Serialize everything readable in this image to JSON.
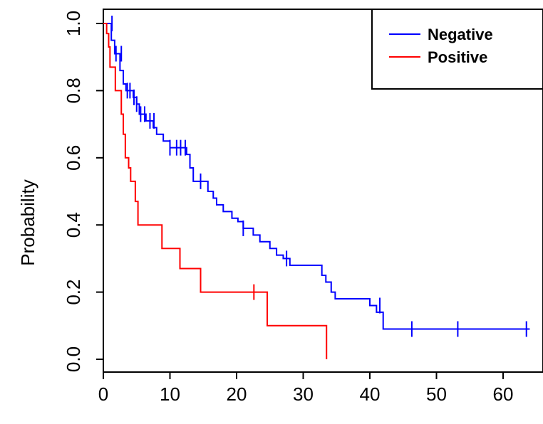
{
  "chart_data": {
    "type": "line",
    "chart_subtype": "kaplan-meier step",
    "title": "",
    "xlabel": "",
    "ylabel": "Probability",
    "xlim": [
      0,
      65
    ],
    "ylim": [
      -0.04,
      1.04
    ],
    "x_ticks": [
      0,
      10,
      20,
      30,
      40,
      50,
      60
    ],
    "x_tick_labels": [
      "0",
      "10",
      "20",
      "30",
      "40",
      "50",
      "60"
    ],
    "y_ticks": [
      0.0,
      0.2,
      0.4,
      0.6,
      0.8,
      1.0
    ],
    "y_tick_labels": [
      "0.0",
      "0.2",
      "0.4",
      "0.6",
      "0.8",
      "1.0"
    ],
    "grid": false,
    "legend": {
      "position": "top-right",
      "entries": [
        "Negative",
        "Positive"
      ]
    },
    "colors": {
      "Negative": "#0000ff",
      "Positive": "#ff0000"
    },
    "series": [
      {
        "name": "Negative",
        "color": "#0000ff",
        "steps": [
          [
            0,
            1.0
          ],
          [
            0.6,
            1.0
          ],
          [
            1.2,
            0.95
          ],
          [
            1.7,
            0.91
          ],
          [
            2.5,
            0.86
          ],
          [
            3.0,
            0.82
          ],
          [
            3.4,
            0.8
          ],
          [
            4.0,
            0.8
          ],
          [
            4.5,
            0.78
          ],
          [
            5.0,
            0.76
          ],
          [
            5.4,
            0.73
          ],
          [
            6.0,
            0.73
          ],
          [
            6.4,
            0.71
          ],
          [
            7.5,
            0.69
          ],
          [
            8.0,
            0.67
          ],
          [
            9.0,
            0.65
          ],
          [
            10.0,
            0.63
          ],
          [
            12.5,
            0.61
          ],
          [
            13.0,
            0.57
          ],
          [
            13.5,
            0.53
          ],
          [
            15.7,
            0.5
          ],
          [
            16.5,
            0.48
          ],
          [
            17.0,
            0.46
          ],
          [
            18.0,
            0.44
          ],
          [
            19.3,
            0.42
          ],
          [
            20.2,
            0.41
          ],
          [
            21.0,
            0.39
          ],
          [
            22.5,
            0.37
          ],
          [
            23.5,
            0.35
          ],
          [
            25.0,
            0.33
          ],
          [
            26.0,
            0.31
          ],
          [
            27.0,
            0.3
          ],
          [
            28.0,
            0.28
          ],
          [
            32.8,
            0.25
          ],
          [
            33.4,
            0.23
          ],
          [
            34.2,
            0.2
          ],
          [
            34.8,
            0.18
          ],
          [
            40.0,
            0.16
          ],
          [
            41.0,
            0.14
          ],
          [
            42.0,
            0.09
          ],
          [
            64.0,
            0.09
          ]
        ],
        "censored": [
          [
            1.3,
            1.0
          ],
          [
            1.9,
            0.91
          ],
          [
            2.7,
            0.91
          ],
          [
            3.6,
            0.8
          ],
          [
            4.0,
            0.8
          ],
          [
            4.6,
            0.78
          ],
          [
            5.0,
            0.76
          ],
          [
            5.6,
            0.73
          ],
          [
            6.2,
            0.73
          ],
          [
            7.0,
            0.71
          ],
          [
            7.6,
            0.71
          ],
          [
            10.0,
            0.63
          ],
          [
            11.0,
            0.63
          ],
          [
            11.6,
            0.63
          ],
          [
            12.3,
            0.63
          ],
          [
            14.6,
            0.53
          ],
          [
            21.0,
            0.39
          ],
          [
            27.5,
            0.3
          ],
          [
            41.5,
            0.16
          ],
          [
            46.3,
            0.09
          ],
          [
            53.2,
            0.09
          ],
          [
            63.5,
            0.09
          ]
        ]
      },
      {
        "name": "Positive",
        "color": "#ff0000",
        "steps": [
          [
            0,
            1.0
          ],
          [
            0.5,
            0.97
          ],
          [
            0.8,
            0.93
          ],
          [
            1.0,
            0.87
          ],
          [
            1.8,
            0.8
          ],
          [
            2.7,
            0.73
          ],
          [
            3.0,
            0.67
          ],
          [
            3.3,
            0.6
          ],
          [
            3.8,
            0.57
          ],
          [
            4.1,
            0.53
          ],
          [
            4.8,
            0.47
          ],
          [
            5.2,
            0.4
          ],
          [
            8.8,
            0.33
          ],
          [
            11.5,
            0.27
          ],
          [
            14.6,
            0.2
          ],
          [
            24.6,
            0.1
          ],
          [
            33.5,
            0.0
          ]
        ],
        "censored": [
          [
            22.6,
            0.2
          ]
        ]
      }
    ]
  }
}
